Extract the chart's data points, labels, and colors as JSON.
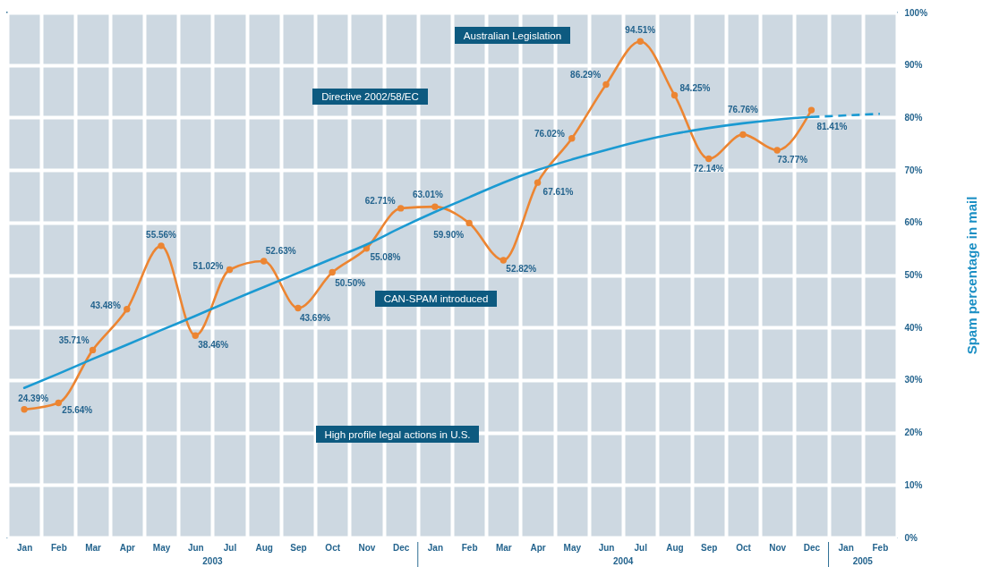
{
  "chart_data": {
    "type": "line",
    "ylabel": "Spam percentage in mail",
    "categories": [
      "Jan",
      "Feb",
      "Mar",
      "Apr",
      "May",
      "Jun",
      "Jul",
      "Aug",
      "Sep",
      "Oct",
      "Nov",
      "Dec",
      "Jan",
      "Feb",
      "Mar",
      "Apr",
      "May",
      "Jun",
      "Jul",
      "Aug",
      "Sep",
      "Oct",
      "Nov",
      "Dec",
      "Jan",
      "Feb"
    ],
    "series": [
      {
        "color": "#ec8532",
        "marker": "circle",
        "line_style": "solid",
        "values": [
          24.39,
          25.64,
          35.71,
          43.48,
          55.56,
          38.46,
          51.02,
          52.63,
          43.69,
          50.5,
          55.08,
          62.71,
          63.01,
          59.9,
          52.82,
          67.61,
          76.02,
          86.29,
          94.51,
          84.25,
          72.14,
          76.76,
          73.77,
          81.41,
          null,
          null
        ],
        "value_labels": [
          "24.39%",
          "25.64%",
          "35.71%",
          "43.48%",
          "55.56%",
          "38.46%",
          "51.02%",
          "52.63%",
          "43.69%",
          "50.50%",
          "55.08%",
          "62.71%",
          "63.01%",
          "59.90%",
          "52.82%",
          "67.61%",
          "76.02%",
          "86.29%",
          "94.51%",
          "84.25%",
          "72.14%",
          "76.76%",
          "73.77%",
          "81.41%",
          null,
          null
        ]
      },
      {
        "color": "#1b9ad2",
        "marker": "none",
        "line_style": "solid",
        "values": [
          28.5,
          31.2,
          34.0,
          36.7,
          39.5,
          42.2,
          45.0,
          47.7,
          50.4,
          53.1,
          55.8,
          59.0,
          62.0,
          64.8,
          67.6,
          70.0,
          72.0,
          73.8,
          75.5,
          76.9,
          78.0,
          78.9,
          79.6,
          80.1,
          null,
          null
        ]
      },
      {
        "color": "#1b9ad2",
        "marker": "none",
        "line_style": "dashed",
        "values": [
          null,
          null,
          null,
          null,
          null,
          null,
          null,
          null,
          null,
          null,
          null,
          null,
          null,
          null,
          null,
          null,
          null,
          null,
          null,
          null,
          null,
          null,
          null,
          80.1,
          80.4,
          80.7
        ]
      }
    ],
    "ylim": [
      0,
      100
    ],
    "yticks": [
      {
        "value": 0,
        "label": "0%"
      },
      {
        "value": 10,
        "label": "10%"
      },
      {
        "value": 20,
        "label": "20%"
      },
      {
        "value": 30,
        "label": "30%"
      },
      {
        "value": 40,
        "label": "40%"
      },
      {
        "value": 50,
        "label": "50%"
      },
      {
        "value": 60,
        "label": "60%"
      },
      {
        "value": 70,
        "label": "70%"
      },
      {
        "value": 80,
        "label": "80%"
      },
      {
        "value": 90,
        "label": "90%"
      },
      {
        "value": 100,
        "label": "100%"
      }
    ],
    "grid": true,
    "annotations": [
      "Australian Legislation",
      "Directive 2002/58/EC",
      "CAN-SPAM introduced",
      "High profile legal actions in U.S.",
      "2003",
      "2004",
      "2005"
    ]
  }
}
